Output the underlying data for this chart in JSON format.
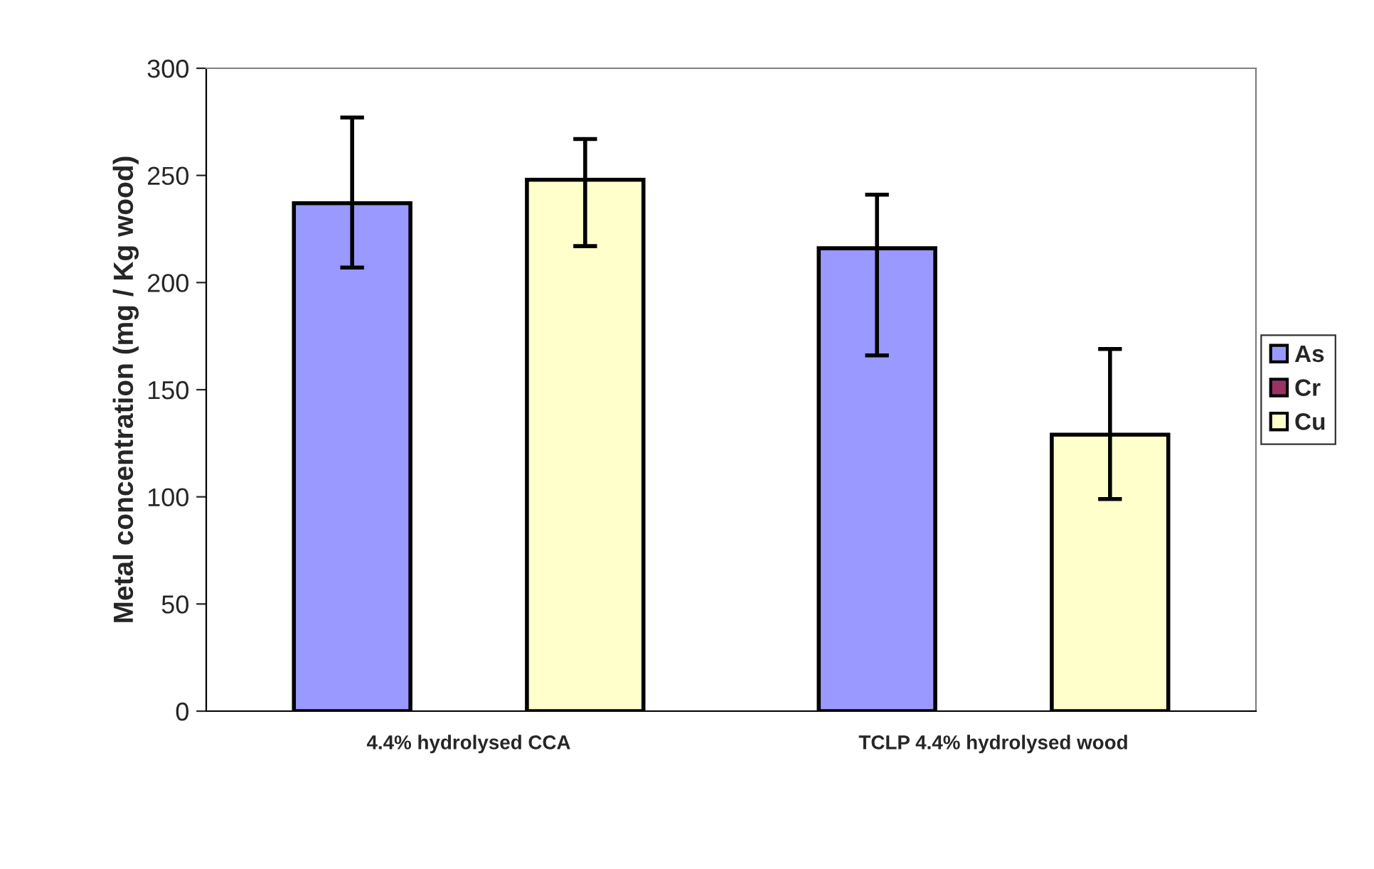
{
  "chart_data": {
    "type": "bar",
    "ylabel": "Metal concentration (mg / Kg wood)",
    "categories": [
      "4.4% hydrolysed CCA",
      "TCLP 4.4% hydrolysed wood"
    ],
    "series": [
      {
        "name": "As",
        "color": "#9999ff",
        "values": [
          237,
          216
        ],
        "errors": [
          [
            207,
            277
          ],
          [
            166,
            241
          ]
        ]
      },
      {
        "name": "Cr",
        "color": "#993366",
        "values": [
          null,
          null
        ]
      },
      {
        "name": "Cu",
        "color": "#ffffcc",
        "values": [
          248,
          129
        ],
        "errors": [
          [
            217,
            267
          ],
          [
            99,
            169
          ]
        ]
      }
    ],
    "ylim": [
      0,
      300
    ],
    "yticks": [
      0,
      50,
      100,
      150,
      200,
      250,
      300
    ],
    "grid": false,
    "legend": "right"
  }
}
